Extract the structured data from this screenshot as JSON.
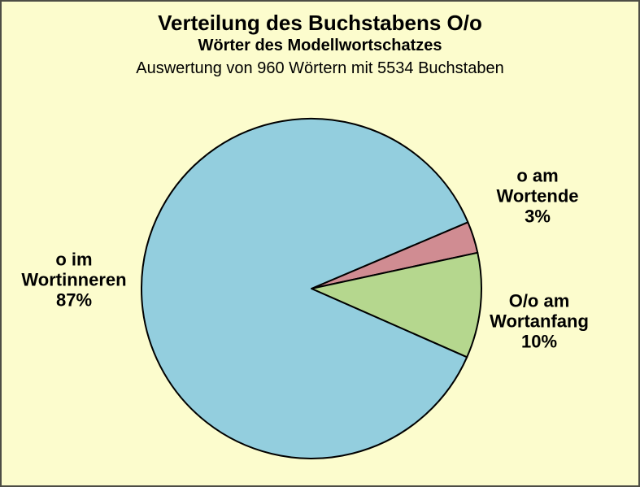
{
  "title": "Verteilung des Buchstabens O/o",
  "subtitle": "Wörter des Modellwortschatzes",
  "note": "Auswertung von 960 Wörtern mit 5534 Buchstaben",
  "colors": {
    "background": "#fcfccd",
    "frame": "#4d4d45",
    "outline": "#000000",
    "blue": "#93cede",
    "pink": "#d08c92",
    "green": "#b5d78e"
  },
  "chart_data": {
    "type": "pie",
    "title": "Verteilung des Buchstabens O/o",
    "subtitle": "Wörter des Modellwortschatzes",
    "note": "Auswertung von 960 Wörtern mit 5534 Buchstaben",
    "total_words": 960,
    "total_letters": 5534,
    "legend_position": "none",
    "start_angle_deg": -23,
    "direction": "clockwise",
    "slices": [
      {
        "name": "o am Wortende",
        "pct": 3,
        "color_key": "pink"
      },
      {
        "name": "O/o am Wortanfang",
        "pct": 10,
        "color_key": "green"
      },
      {
        "name": "o im Wortinneren",
        "pct": 87,
        "color_key": "blue"
      }
    ]
  },
  "labels": {
    "wortinneren": {
      "lines": [
        "o im",
        "Wortinneren",
        "87%"
      ]
    },
    "wortende": {
      "lines": [
        "o am",
        "Wortende",
        "3%"
      ]
    },
    "wortanfang": {
      "lines": [
        "O/o am",
        "Wortanfang",
        "10%"
      ]
    }
  }
}
